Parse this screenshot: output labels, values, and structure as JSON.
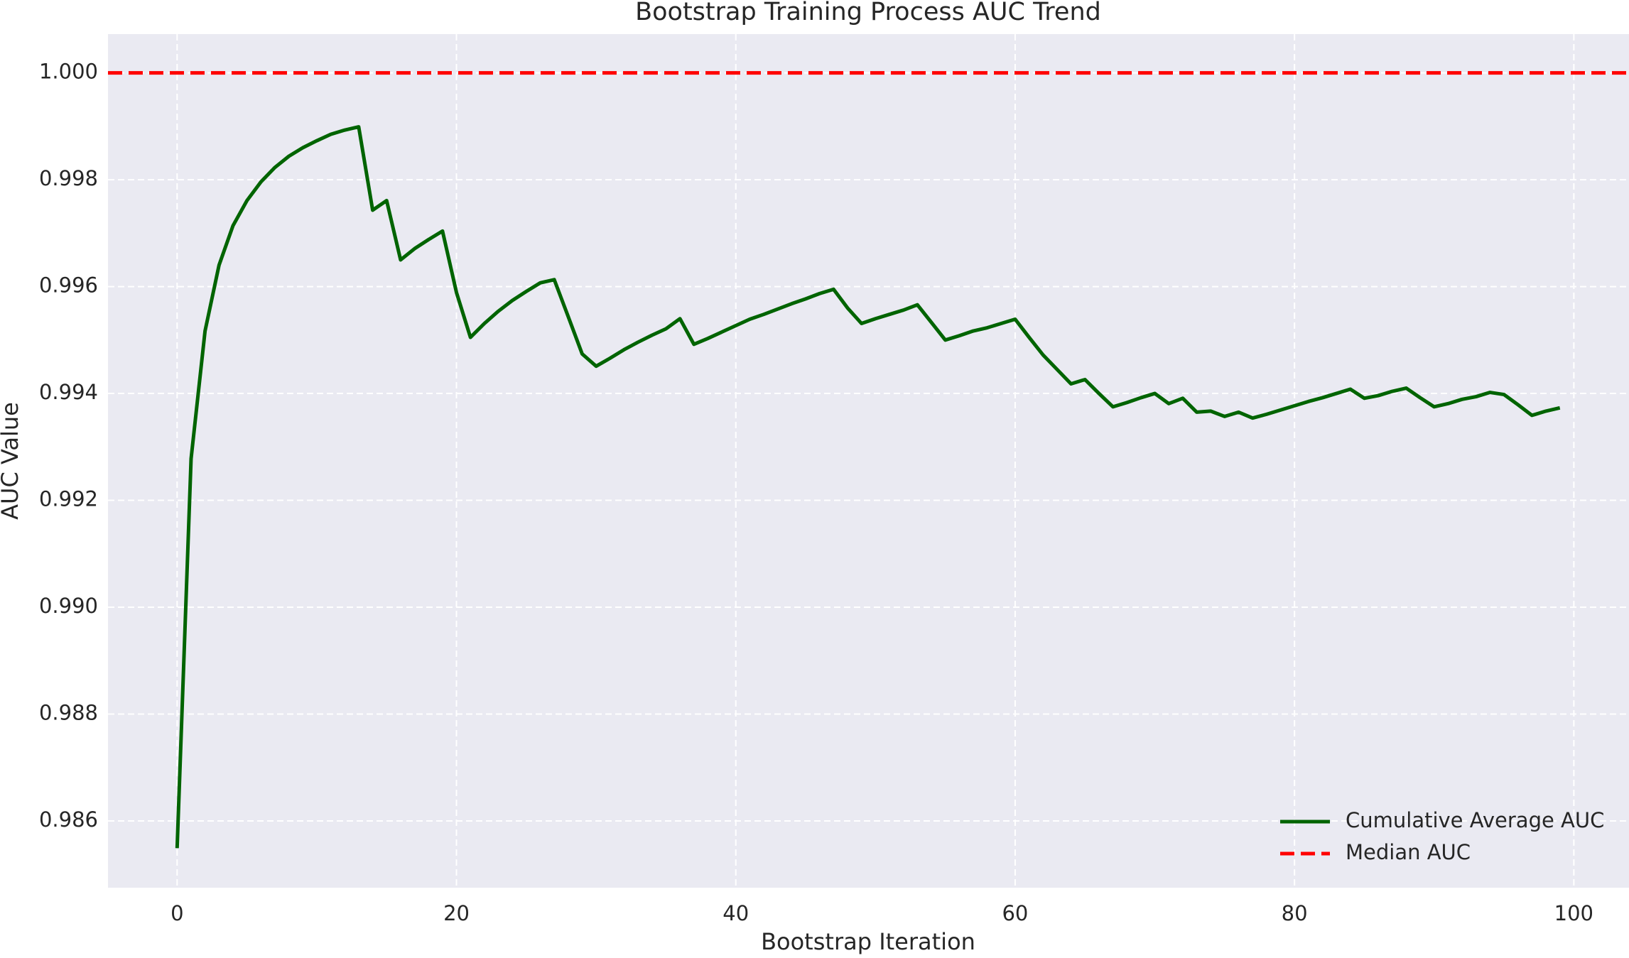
{
  "chart_data": {
    "type": "line",
    "title": "Bootstrap Training Process AUC Trend",
    "xlabel": "Bootstrap Iteration",
    "ylabel": "AUC Value",
    "x": [
      0,
      1,
      2,
      3,
      4,
      5,
      6,
      7,
      8,
      9,
      10,
      11,
      12,
      13,
      14,
      15,
      16,
      17,
      18,
      19,
      20,
      21,
      22,
      23,
      24,
      25,
      26,
      27,
      28,
      29,
      30,
      31,
      32,
      33,
      34,
      35,
      36,
      37,
      38,
      39,
      40,
      41,
      42,
      43,
      44,
      45,
      46,
      47,
      48,
      49,
      50,
      51,
      52,
      53,
      54,
      55,
      56,
      57,
      58,
      59,
      60,
      61,
      62,
      63,
      64,
      65,
      66,
      67,
      68,
      69,
      70,
      71,
      72,
      73,
      74,
      75,
      76,
      77,
      78,
      79,
      80,
      81,
      82,
      83,
      84,
      85,
      86,
      87,
      88,
      89,
      90,
      91,
      92,
      93,
      94,
      95,
      96,
      97,
      98,
      99
    ],
    "series": [
      {
        "name": "Cumulative Average AUC",
        "color": "#006400",
        "values": [
          0.98549,
          0.99278,
          0.99517,
          0.9964,
          0.99714,
          0.99761,
          0.99796,
          0.99823,
          0.99844,
          0.9986,
          0.99873,
          0.99885,
          0.99893,
          0.99899,
          0.99743,
          0.99761,
          0.9965,
          0.99671,
          0.99688,
          0.99704,
          0.99589,
          0.99505,
          0.99531,
          0.99554,
          0.99574,
          0.99591,
          0.99607,
          0.99613,
          0.99544,
          0.99474,
          0.99451,
          0.99466,
          0.99482,
          0.99496,
          0.99509,
          0.99521,
          0.9954,
          0.99492,
          0.99503,
          0.99515,
          0.99527,
          0.99539,
          0.99548,
          0.99558,
          0.99568,
          0.99577,
          0.99587,
          0.99595,
          0.9956,
          0.99531,
          0.9954,
          0.99548,
          0.99556,
          0.99566,
          0.99533,
          0.995,
          0.99508,
          0.99517,
          0.99523,
          0.99531,
          0.99539,
          0.99505,
          0.99472,
          0.99445,
          0.99418,
          0.99426,
          0.994,
          0.99375,
          0.99383,
          0.99392,
          0.994,
          0.99381,
          0.99391,
          0.99365,
          0.99367,
          0.99357,
          0.99365,
          0.99354,
          0.99361,
          0.99369,
          0.99377,
          0.99385,
          0.99392,
          0.994,
          0.99408,
          0.99391,
          0.99396,
          0.99404,
          0.9941,
          0.99392,
          0.99375,
          0.99381,
          0.99389,
          0.99394,
          0.99402,
          0.99398,
          0.99379,
          0.99359,
          0.99367,
          0.99373
        ]
      }
    ],
    "reference_line": {
      "name": "Median AUC",
      "value": 1.0,
      "color": "#ff0000"
    },
    "xlim": [
      -4.95,
      103.95
    ],
    "ylim": [
      0.98475,
      1.000726
    ],
    "xticks": [
      0,
      20,
      40,
      60,
      80,
      100
    ],
    "yticks": [
      0.986,
      0.988,
      {
        "value": 0.99,
        "label": "0.990"
      },
      0.992,
      0.994,
      0.996,
      0.998,
      {
        "value": 1.0,
        "label": "1.000"
      }
    ],
    "grid": true,
    "legend": "lower right"
  }
}
